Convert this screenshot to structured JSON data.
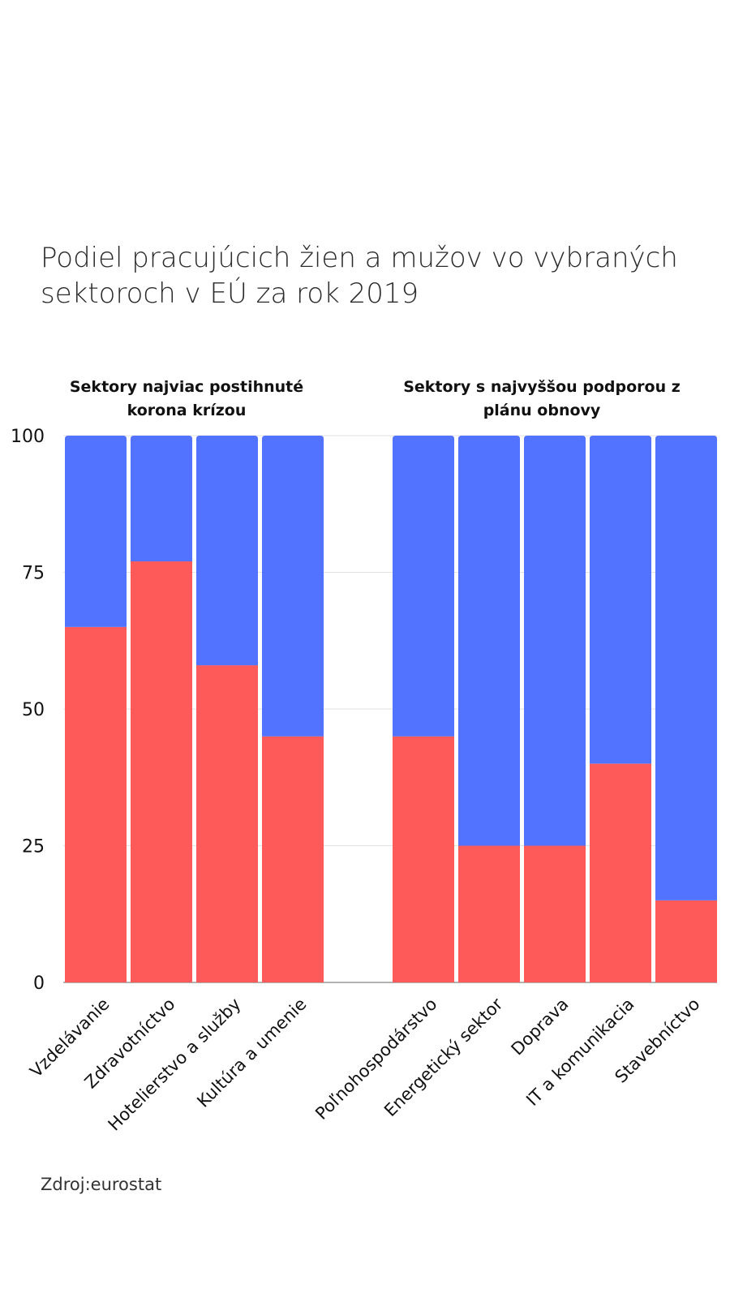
{
  "title": "Podiel pracujúcich žien a mužov vo vybraných sektoroch v EÚ za rok 2019",
  "source": "Zdroj:eurostat",
  "colors": {
    "women": "#ff5a5a",
    "men": "#5273ff",
    "grid": "#e2e2e2",
    "axis": "#999999"
  },
  "chart_data": {
    "type": "bar",
    "stacked": true,
    "groups": [
      {
        "label": "Sektory najviac postihnuté korona krízou",
        "categories": [
          "Vzdelávanie",
          "Zdravotníctvo",
          "Hotelierstvo a služby",
          "Kultúra a umenie"
        ]
      },
      {
        "label": "Sektory s najvyššou podporou z plánu obnovy",
        "categories": [
          "Poľnohospodárstvo",
          "Energetický sektor",
          "Doprava",
          "IT a komunikacia",
          "Stavebníctvo"
        ]
      }
    ],
    "categories": [
      "Vzdelávanie",
      "Zdravotníctvo",
      "Hotelierstvo a služby",
      "Kultúra a umenie",
      "Poľnohospodárstvo",
      "Energetický sektor",
      "Doprava",
      "IT a komunikacia",
      "Stavebníctvo"
    ],
    "series": [
      {
        "color": "#ff5a5a",
        "values": [
          65,
          77,
          58,
          45,
          45,
          25,
          25,
          40,
          15
        ]
      },
      {
        "color": "#5273ff",
        "values": [
          35,
          23,
          42,
          55,
          55,
          75,
          75,
          60,
          85
        ]
      }
    ],
    "ylim": [
      0,
      100
    ],
    "yticks": [
      "0",
      "25",
      "50",
      "75",
      "100"
    ],
    "grid": true,
    "xlabel": "",
    "ylabel": ""
  }
}
